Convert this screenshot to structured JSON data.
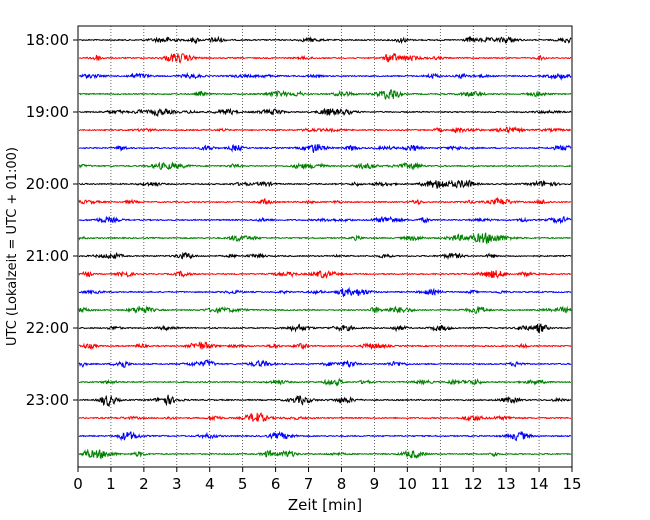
{
  "chart_data": {
    "type": "line",
    "description_kind": "helicorder",
    "xlabel": "Zeit  [min]",
    "ylabel": "UTC (Lokalzeit = UTC + 01:00)",
    "xlim": [
      0,
      15
    ],
    "xticks": [
      0,
      1,
      2,
      3,
      4,
      5,
      6,
      7,
      8,
      9,
      10,
      11,
      12,
      13,
      14,
      15
    ],
    "ytick_labels": [
      "18:00",
      "19:00",
      "20:00",
      "21:00",
      "22:00",
      "23:00"
    ],
    "traces_per_hour": 4,
    "trace_minutes": 15,
    "trace_start_times": [
      "18:00",
      "18:15",
      "18:30",
      "18:45",
      "19:00",
      "19:15",
      "19:30",
      "19:45",
      "20:00",
      "20:15",
      "20:30",
      "20:45",
      "21:00",
      "21:15",
      "21:30",
      "21:45",
      "22:00",
      "22:15",
      "22:30",
      "22:45",
      "23:00",
      "23:15",
      "23:30",
      "23:45"
    ],
    "trace_colors": [
      "#000000",
      "#ff0000",
      "#0000ff",
      "#008000"
    ],
    "vertical_grid": true,
    "grid_style": "dotted",
    "signal": "background seismic noise (low amplitude, no events)"
  }
}
